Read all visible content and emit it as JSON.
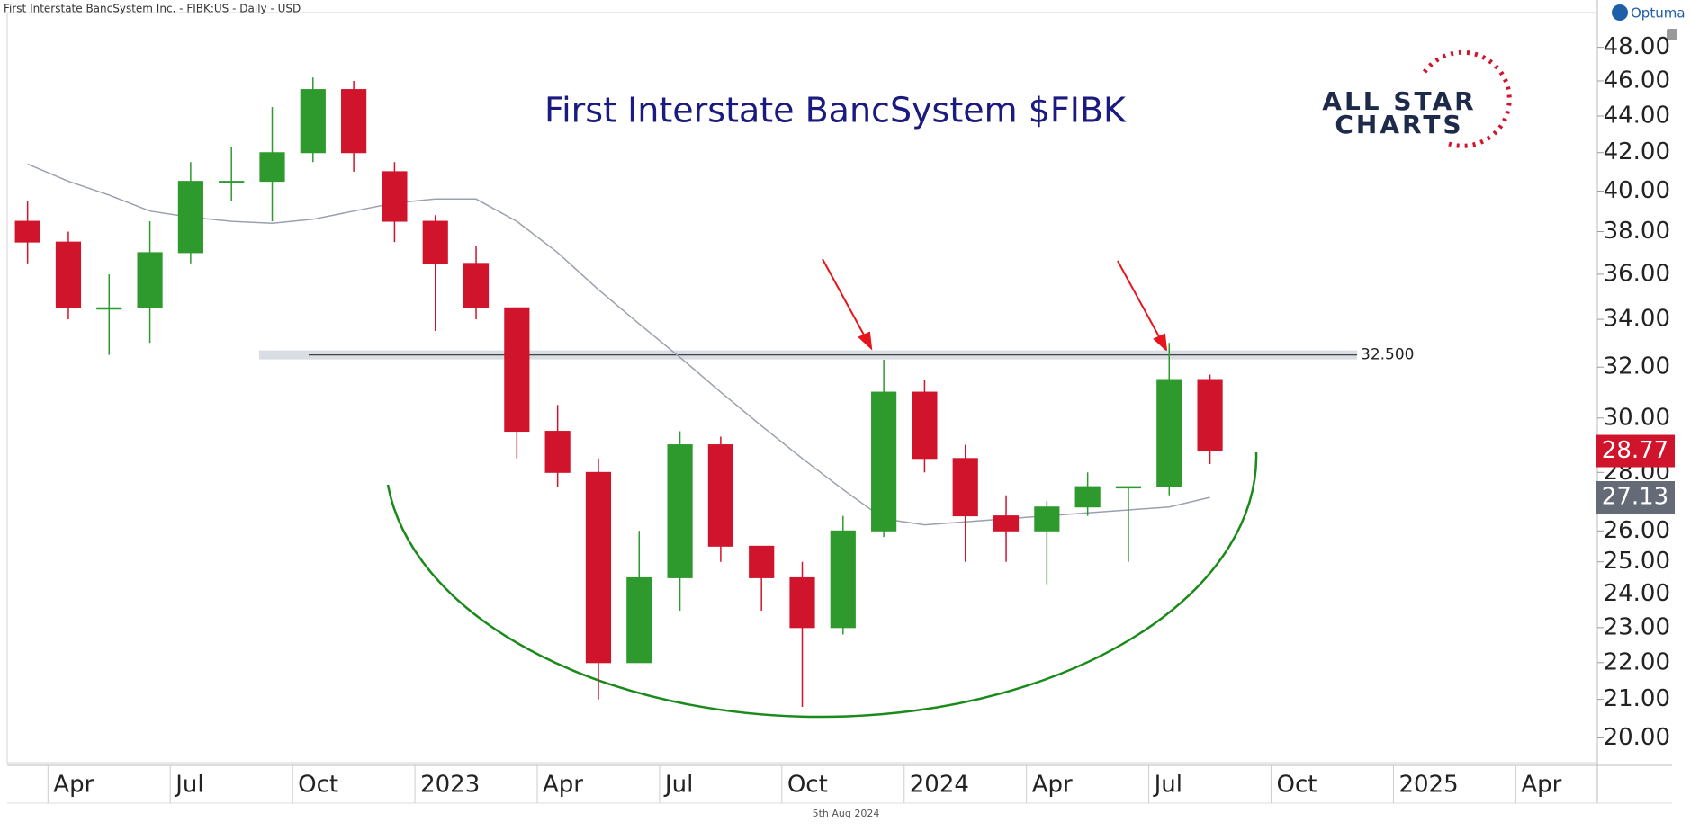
{
  "chart_data": {
    "type": "candlestick",
    "header": "First Interstate BancSystem Inc.  - FIBK:US - Daily - USD",
    "title": "First Interstate BancSystem $FIBK",
    "footer": "5th Aug 2024",
    "log": true,
    "x": [
      "2022-03",
      "2022-04",
      "2022-05",
      "2022-06",
      "2022-07",
      "2022-08",
      "2022-09",
      "2022-10",
      "2022-11",
      "2022-12",
      "2023-01",
      "2023-02",
      "2023-03",
      "2023-04",
      "2023-05",
      "2023-06",
      "2023-07",
      "2023-08",
      "2023-09",
      "2023-10",
      "2023-11",
      "2023-12",
      "2024-01",
      "2024-02",
      "2024-03",
      "2024-04",
      "2024-05",
      "2024-06",
      "2024-07",
      "2024-08"
    ],
    "open": [
      38.5,
      37.5,
      34.5,
      34.5,
      37,
      40.5,
      40.5,
      42,
      45.5,
      41,
      38.5,
      36.5,
      34.5,
      29.5,
      28,
      22,
      24.5,
      29,
      25.5,
      24.5,
      23,
      26,
      31,
      28.5,
      26.5,
      26,
      26.8,
      27.5,
      27.5,
      31.5
    ],
    "high": [
      39.5,
      38,
      36,
      38.5,
      41.5,
      42.3,
      44.5,
      46.2,
      46,
      41.5,
      38.8,
      37.3,
      34.5,
      30.5,
      28.5,
      26,
      29.5,
      29.3,
      25.5,
      25,
      26.5,
      32.3,
      31.5,
      29,
      27.2,
      27,
      28,
      27.5,
      33,
      31.7
    ],
    "low": [
      36.5,
      34,
      32.5,
      33,
      36.5,
      39.5,
      38.5,
      41.5,
      41,
      37.5,
      33.5,
      34,
      28.5,
      27.5,
      21,
      22,
      23.5,
      25,
      23.5,
      20.8,
      22.8,
      25.8,
      28,
      25,
      25,
      24.3,
      26.5,
      25,
      27.2,
      28.3
    ],
    "close": [
      37.5,
      34.5,
      34.5,
      37,
      40.5,
      40.5,
      42,
      45.5,
      42,
      38.5,
      36.5,
      34.5,
      29.5,
      28,
      22,
      24.5,
      29,
      25.5,
      24.5,
      23,
      26,
      31,
      28.5,
      26.5,
      26,
      26.8,
      27.5,
      27.5,
      31.5,
      28.77
    ],
    "up_color": "#2e9a2e",
    "down_color": "#d0142c",
    "ma": {
      "color": "#9aa0ae",
      "values": [
        41.4,
        40.5,
        39.8,
        39,
        38.7,
        38.5,
        38.4,
        38.6,
        39,
        39.4,
        39.6,
        39.6,
        38.5,
        37,
        35.3,
        33.8,
        32.4,
        31,
        29.7,
        28.5,
        27.4,
        26.4,
        26.2,
        26.3,
        26.4,
        26.5,
        26.6,
        26.7,
        26.8,
        27.13
      ]
    },
    "resistance": {
      "value": 32.5,
      "label": "32.500"
    },
    "xlim": [
      "2022-03",
      "2025-05"
    ],
    "xticks": [
      {
        "value": "2022-04",
        "label": "Apr"
      },
      {
        "value": "2022-07",
        "label": "Jul"
      },
      {
        "value": "2022-10",
        "label": "Oct"
      },
      {
        "value": "2023-01",
        "label": "2023"
      },
      {
        "value": "2023-04",
        "label": "Apr"
      },
      {
        "value": "2023-07",
        "label": "Jul"
      },
      {
        "value": "2023-10",
        "label": "Oct"
      },
      {
        "value": "2024-01",
        "label": "2024"
      },
      {
        "value": "2024-04",
        "label": "Apr"
      },
      {
        "value": "2024-07",
        "label": "Jul"
      },
      {
        "value": "2024-10",
        "label": "Oct"
      },
      {
        "value": "2025-01",
        "label": "2025"
      },
      {
        "value": "2025-04",
        "label": "Apr"
      }
    ],
    "ylim": [
      19.38,
      50.97
    ],
    "yticks": [
      {
        "value": 20,
        "label": "20.00"
      },
      {
        "value": 21,
        "label": "21.00"
      },
      {
        "value": 22,
        "label": "22.00"
      },
      {
        "value": 23,
        "label": "23.00"
      },
      {
        "value": 24,
        "label": "24.00"
      },
      {
        "value": 25,
        "label": "25.00"
      },
      {
        "value": 26,
        "label": "26.00"
      },
      {
        "value": 28,
        "label": "28.00"
      },
      {
        "value": 30,
        "label": "30.00"
      },
      {
        "value": 32,
        "label": "32.00"
      },
      {
        "value": 34,
        "label": "34.00"
      },
      {
        "value": 36,
        "label": "36.00"
      },
      {
        "value": 38,
        "label": "38.00"
      },
      {
        "value": 40,
        "label": "40.00"
      },
      {
        "value": 42,
        "label": "42.00"
      },
      {
        "value": 44,
        "label": "44.00"
      },
      {
        "value": 46,
        "label": "46.00"
      },
      {
        "value": 48,
        "label": "48.00"
      }
    ],
    "branding": {
      "logo_top": "ALL STAR",
      "logo_bottom": "CHARTS",
      "vendor": "Optuma"
    }
  }
}
